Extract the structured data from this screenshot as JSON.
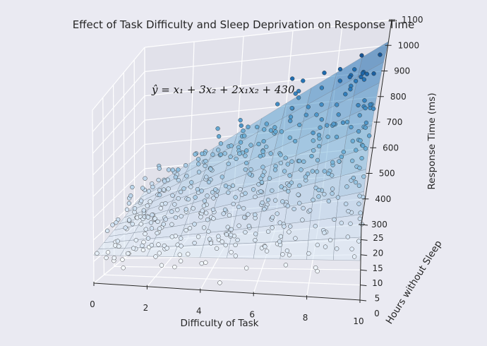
{
  "chart_data": {
    "type": "scatter",
    "projection": "3d",
    "title": "Effect of Task Difficulty and Sleep Deprivation on Response Time",
    "xlabel": "Difficulty of Task",
    "ylabel": "Hours without Sleep",
    "zlabel": "Response Time (ms)",
    "annotation": "ŷ = x₁ + 3x₂ + 2x₁x₂ + 430",
    "xlim": [
      0,
      10
    ],
    "ylim": [
      0,
      25
    ],
    "zlim": [
      300,
      1100
    ],
    "xticks": [
      "0",
      "2",
      "4",
      "6",
      "8",
      "10"
    ],
    "yticks": [
      "0",
      "5",
      "10",
      "15",
      "20",
      "25"
    ],
    "zticks": [
      "300",
      "400",
      "500",
      "600",
      "700",
      "800",
      "900",
      "1000",
      "1100"
    ],
    "surface": {
      "equation": "y = x1 + 3*x2 + 2*x1*x2 + 430",
      "colormap": "Blues"
    },
    "colormap": "Blues",
    "grid": true,
    "n_points": 500,
    "points_note": "500 simulated observations scattered around the fitted surface, colored by response time"
  }
}
